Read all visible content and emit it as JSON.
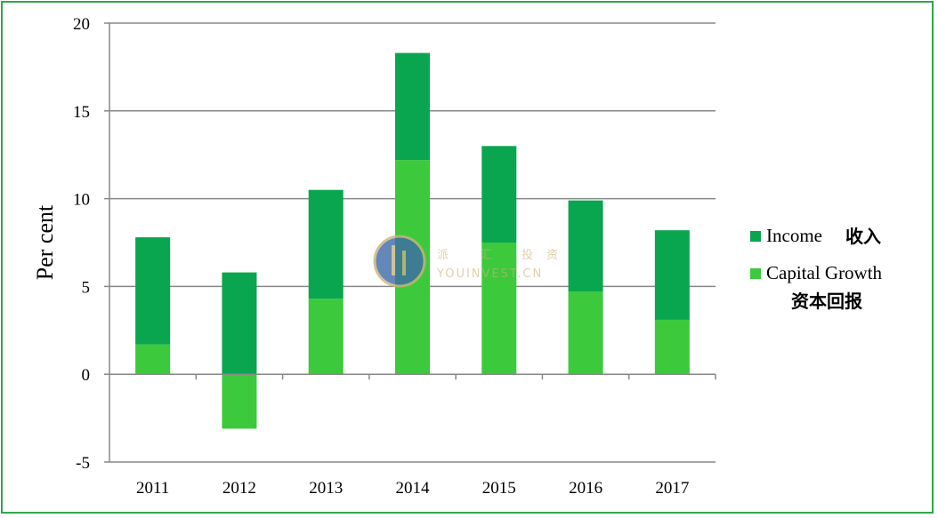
{
  "chart_data": {
    "type": "bar",
    "stacked": true,
    "categories": [
      "2011",
      "2012",
      "2013",
      "2014",
      "2015",
      "2016",
      "2017"
    ],
    "series": [
      {
        "name": "Capital Growth",
        "name_cjk": "资本回报",
        "color": "#3cc93c",
        "values": [
          1.7,
          -3.1,
          4.3,
          12.2,
          7.5,
          4.7,
          3.1
        ]
      },
      {
        "name": "Income",
        "name_cjk": "收入",
        "color": "#0aa64f",
        "values": [
          6.1,
          5.8,
          6.2,
          6.1,
          5.5,
          5.2,
          5.1
        ]
      }
    ],
    "ylabel": "Per cent",
    "ylim": [
      -5,
      20
    ],
    "yticks": [
      20,
      15,
      10,
      5,
      0,
      -5
    ],
    "grid": true,
    "legend_position": "right"
  },
  "watermark": {
    "text": "YOUINVEST.CN",
    "text_cjk": [
      "派",
      "汇",
      "投",
      "资"
    ]
  },
  "colors": {
    "border": "#2ea84a",
    "gridline": "#888888"
  }
}
